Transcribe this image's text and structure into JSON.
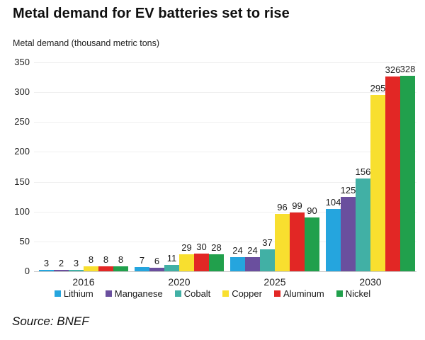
{
  "source": "Source: BNEF",
  "chart_data": {
    "type": "bar",
    "title": "Metal demand for EV batteries set to rise",
    "y_axis_title": "Metal demand (thousand metric tons)",
    "categories": [
      "2016",
      "2020",
      "2025",
      "2030"
    ],
    "series": [
      {
        "name": "Lithium",
        "color": "#25A5DE",
        "values": [
          3,
          7,
          24,
          104
        ]
      },
      {
        "name": "Manganese",
        "color": "#6A4F9E",
        "values": [
          2,
          6,
          24,
          125
        ]
      },
      {
        "name": "Cobalt",
        "color": "#41B0A5",
        "values": [
          3,
          11,
          37,
          156
        ]
      },
      {
        "name": "Copper",
        "color": "#F8DF2F",
        "values": [
          8,
          29,
          96,
          295
        ]
      },
      {
        "name": "Aluminum",
        "color": "#E22725",
        "values": [
          8,
          30,
          99,
          326
        ]
      },
      {
        "name": "Nickel",
        "color": "#21A04C",
        "values": [
          8,
          28,
          90,
          328
        ]
      }
    ],
    "ylim": [
      0,
      350
    ],
    "ytick_step": 50,
    "grid": true,
    "legend_position": "bottom",
    "data_labels": true
  }
}
